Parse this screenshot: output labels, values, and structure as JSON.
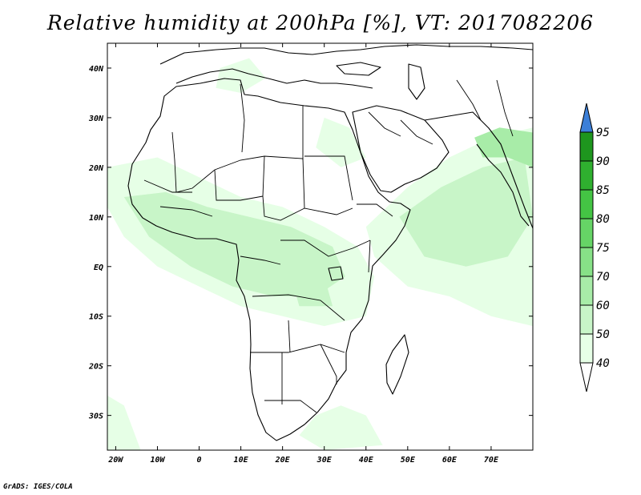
{
  "title": "Relative humidity at 200hPa [%], VT: 2017082206",
  "credit": "GrADS: IGES/COLA",
  "map": {
    "lon_range": [
      -22,
      80
    ],
    "lat_range": [
      -37,
      45
    ],
    "lon_ticks": [
      {
        "value": -20,
        "label": "20W"
      },
      {
        "value": -10,
        "label": "10W"
      },
      {
        "value": 0,
        "label": "0"
      },
      {
        "value": 10,
        "label": "10E"
      },
      {
        "value": 20,
        "label": "20E"
      },
      {
        "value": 30,
        "label": "30E"
      },
      {
        "value": 40,
        "label": "40E"
      },
      {
        "value": 50,
        "label": "50E"
      },
      {
        "value": 60,
        "label": "60E"
      },
      {
        "value": 70,
        "label": "70E"
      }
    ],
    "lat_ticks": [
      {
        "value": 40,
        "label": "40N"
      },
      {
        "value": 30,
        "label": "30N"
      },
      {
        "value": 20,
        "label": "20N"
      },
      {
        "value": 10,
        "label": "10N"
      },
      {
        "value": 0,
        "label": "EQ"
      },
      {
        "value": -10,
        "label": "10S"
      },
      {
        "value": -20,
        "label": "20S"
      },
      {
        "value": -30,
        "label": "30S"
      }
    ]
  },
  "colorbar": {
    "levels": [
      "40",
      "50",
      "60",
      "70",
      "75",
      "80",
      "85",
      "90",
      "95"
    ],
    "colors": [
      "#e6ffe6",
      "#c8f5c8",
      "#a8eca8",
      "#87e187",
      "#66d466",
      "#44c444",
      "#2fb02f",
      "#1e961e"
    ],
    "over_color": "#3c7fd8",
    "under_color": "#ffffff"
  },
  "humidity_colors": {
    "light": "#e6ffe6",
    "medium": "#c8f5c8",
    "strong": "#a8eca8"
  }
}
